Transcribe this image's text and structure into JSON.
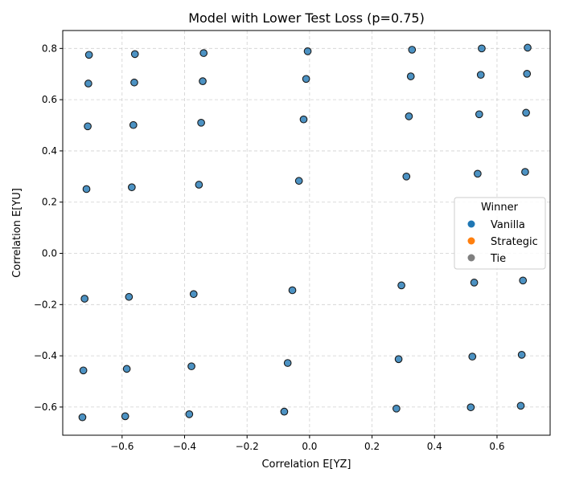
{
  "chart_data": {
    "type": "scatter",
    "title": "Model with Lower Test Loss (p=0.75)",
    "xlabel": "Correlation E[YZ]",
    "ylabel": "Correlation E[YU]",
    "xlim": [
      -0.79,
      0.77
    ],
    "ylim": [
      -0.71,
      0.87
    ],
    "xticks": [
      -0.6,
      -0.4,
      -0.2,
      0.0,
      0.2,
      0.4,
      0.6
    ],
    "xtick_labels": [
      "−0.6",
      "−0.4",
      "−0.2",
      "0.0",
      "0.2",
      "0.4",
      "0.6"
    ],
    "yticks": [
      -0.6,
      -0.4,
      -0.2,
      0.0,
      0.2,
      0.4,
      0.6,
      0.8
    ],
    "ytick_labels": [
      "−0.6",
      "−0.4",
      "−0.2",
      "0.0",
      "0.2",
      "0.4",
      "0.6",
      "0.8"
    ],
    "grid": true,
    "legend": {
      "title": "Winner",
      "placement": "center-right",
      "entries": [
        {
          "label": "Vanilla",
          "color": "#1f77b4"
        },
        {
          "label": "Strategic",
          "color": "#ff7f0e"
        },
        {
          "label": "Tie",
          "color": "#7f7f7f"
        }
      ]
    },
    "series": [
      {
        "name": "Vanilla",
        "color": "#1f77b4",
        "points": [
          [
            -0.706,
            0.775
          ],
          [
            -0.559,
            0.778
          ],
          [
            -0.339,
            0.782
          ],
          [
            -0.006,
            0.789
          ],
          [
            0.328,
            0.795
          ],
          [
            0.551,
            0.8
          ],
          [
            0.698,
            0.803
          ],
          [
            -0.708,
            0.663
          ],
          [
            -0.561,
            0.667
          ],
          [
            -0.342,
            0.672
          ],
          [
            -0.011,
            0.681
          ],
          [
            0.324,
            0.691
          ],
          [
            0.548,
            0.697
          ],
          [
            0.696,
            0.701
          ],
          [
            -0.71,
            0.496
          ],
          [
            -0.564,
            0.501
          ],
          [
            -0.347,
            0.51
          ],
          [
            -0.019,
            0.523
          ],
          [
            0.318,
            0.535
          ],
          [
            0.543,
            0.543
          ],
          [
            0.693,
            0.549
          ],
          [
            -0.714,
            0.251
          ],
          [
            -0.569,
            0.258
          ],
          [
            -0.354,
            0.268
          ],
          [
            -0.034,
            0.283
          ],
          [
            0.31,
            0.3
          ],
          [
            0.538,
            0.311
          ],
          [
            0.69,
            0.318
          ],
          [
            -0.72,
            -0.177
          ],
          [
            -0.578,
            -0.17
          ],
          [
            -0.371,
            -0.159
          ],
          [
            -0.055,
            -0.144
          ],
          [
            0.294,
            -0.125
          ],
          [
            0.527,
            -0.114
          ],
          [
            0.683,
            -0.106
          ],
          [
            -0.724,
            -0.457
          ],
          [
            -0.585,
            -0.451
          ],
          [
            -0.378,
            -0.441
          ],
          [
            -0.07,
            -0.428
          ],
          [
            0.285,
            -0.413
          ],
          [
            0.521,
            -0.403
          ],
          [
            0.679,
            -0.396
          ],
          [
            -0.727,
            -0.64
          ],
          [
            -0.59,
            -0.636
          ],
          [
            -0.385,
            -0.628
          ],
          [
            -0.081,
            -0.618
          ],
          [
            0.278,
            -0.606
          ],
          [
            0.516,
            -0.601
          ],
          [
            0.676,
            -0.595
          ]
        ]
      },
      {
        "name": "Strategic",
        "color": "#ff7f0e",
        "points": []
      },
      {
        "name": "Tie",
        "color": "#7f7f7f",
        "points": []
      }
    ]
  }
}
